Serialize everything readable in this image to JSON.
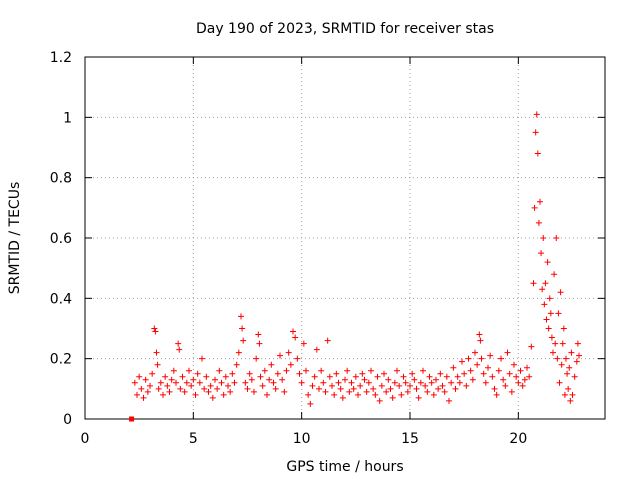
{
  "chart_data": {
    "type": "scatter",
    "title": "Day 190 of 2023, SRMTID for receiver stas",
    "xlabel": "GPS time / hours",
    "ylabel": "SRMTID / TECUs",
    "xlim": [
      0,
      24
    ],
    "ylim": [
      0,
      1.2
    ],
    "xticks": [
      0,
      5,
      10,
      15,
      20
    ],
    "yticks": [
      0,
      0.2,
      0.4,
      0.6,
      0.8,
      1,
      1.2
    ],
    "xtick_labels": [
      "0",
      "5",
      "10",
      "15",
      "20"
    ],
    "ytick_labels": [
      "0",
      "0.2",
      "0.4",
      "0.6",
      "0.8",
      "1",
      "1.2"
    ],
    "grid": true,
    "marker": "+",
    "color": "#ff0000",
    "outlier_points": [
      {
        "x": 2.15,
        "y": 0.0,
        "marker": "square"
      }
    ],
    "series": [
      {
        "name": "SRMTID",
        "points": [
          [
            2.3,
            0.12
          ],
          [
            2.4,
            0.08
          ],
          [
            2.5,
            0.14
          ],
          [
            2.6,
            0.1
          ],
          [
            2.7,
            0.07
          ],
          [
            2.8,
            0.13
          ],
          [
            2.9,
            0.09
          ],
          [
            3.0,
            0.11
          ],
          [
            3.1,
            0.15
          ],
          [
            3.2,
            0.3
          ],
          [
            3.25,
            0.29
          ],
          [
            3.3,
            0.22
          ],
          [
            3.35,
            0.18
          ],
          [
            3.4,
            0.1
          ],
          [
            3.5,
            0.12
          ],
          [
            3.6,
            0.08
          ],
          [
            3.7,
            0.14
          ],
          [
            3.8,
            0.11
          ],
          [
            3.9,
            0.09
          ],
          [
            4.0,
            0.13
          ],
          [
            4.1,
            0.16
          ],
          [
            4.2,
            0.12
          ],
          [
            4.3,
            0.25
          ],
          [
            4.35,
            0.23
          ],
          [
            4.4,
            0.1
          ],
          [
            4.5,
            0.14
          ],
          [
            4.6,
            0.09
          ],
          [
            4.7,
            0.12
          ],
          [
            4.8,
            0.16
          ],
          [
            4.9,
            0.11
          ],
          [
            5.0,
            0.13
          ],
          [
            5.1,
            0.08
          ],
          [
            5.2,
            0.15
          ],
          [
            5.3,
            0.12
          ],
          [
            5.4,
            0.2
          ],
          [
            5.5,
            0.1
          ],
          [
            5.6,
            0.14
          ],
          [
            5.7,
            0.09
          ],
          [
            5.8,
            0.11
          ],
          [
            5.9,
            0.07
          ],
          [
            6.0,
            0.13
          ],
          [
            6.1,
            0.1
          ],
          [
            6.2,
            0.16
          ],
          [
            6.3,
            0.12
          ],
          [
            6.4,
            0.08
          ],
          [
            6.5,
            0.14
          ],
          [
            6.6,
            0.11
          ],
          [
            6.7,
            0.09
          ],
          [
            6.8,
            0.15
          ],
          [
            6.9,
            0.12
          ],
          [
            7.0,
            0.18
          ],
          [
            7.1,
            0.22
          ],
          [
            7.2,
            0.34
          ],
          [
            7.25,
            0.3
          ],
          [
            7.3,
            0.26
          ],
          [
            7.4,
            0.12
          ],
          [
            7.5,
            0.1
          ],
          [
            7.6,
            0.15
          ],
          [
            7.7,
            0.13
          ],
          [
            7.8,
            0.09
          ],
          [
            7.9,
            0.2
          ],
          [
            8.0,
            0.28
          ],
          [
            8.05,
            0.25
          ],
          [
            8.1,
            0.14
          ],
          [
            8.2,
            0.11
          ],
          [
            8.3,
            0.16
          ],
          [
            8.4,
            0.08
          ],
          [
            8.5,
            0.13
          ],
          [
            8.6,
            0.18
          ],
          [
            8.7,
            0.12
          ],
          [
            8.8,
            0.1
          ],
          [
            8.9,
            0.15
          ],
          [
            9.0,
            0.21
          ],
          [
            9.1,
            0.13
          ],
          [
            9.2,
            0.09
          ],
          [
            9.3,
            0.16
          ],
          [
            9.4,
            0.22
          ],
          [
            9.5,
            0.18
          ],
          [
            9.6,
            0.29
          ],
          [
            9.7,
            0.27
          ],
          [
            9.8,
            0.2
          ],
          [
            9.9,
            0.15
          ],
          [
            10.0,
            0.12
          ],
          [
            10.1,
            0.25
          ],
          [
            10.2,
            0.16
          ],
          [
            10.3,
            0.08
          ],
          [
            10.4,
            0.05
          ],
          [
            10.5,
            0.11
          ],
          [
            10.6,
            0.14
          ],
          [
            10.7,
            0.23
          ],
          [
            10.8,
            0.1
          ],
          [
            10.9,
            0.16
          ],
          [
            11.0,
            0.12
          ],
          [
            11.1,
            0.09
          ],
          [
            11.2,
            0.26
          ],
          [
            11.3,
            0.14
          ],
          [
            11.4,
            0.11
          ],
          [
            11.5,
            0.08
          ],
          [
            11.6,
            0.15
          ],
          [
            11.7,
            0.12
          ],
          [
            11.8,
            0.1
          ],
          [
            11.9,
            0.07
          ],
          [
            12.0,
            0.13
          ],
          [
            12.1,
            0.16
          ],
          [
            12.2,
            0.09
          ],
          [
            12.3,
            0.12
          ],
          [
            12.4,
            0.1
          ],
          [
            12.5,
            0.14
          ],
          [
            12.6,
            0.08
          ],
          [
            12.7,
            0.11
          ],
          [
            12.8,
            0.15
          ],
          [
            12.9,
            0.13
          ],
          [
            13.0,
            0.09
          ],
          [
            13.1,
            0.12
          ],
          [
            13.2,
            0.16
          ],
          [
            13.3,
            0.1
          ],
          [
            13.4,
            0.08
          ],
          [
            13.5,
            0.14
          ],
          [
            13.6,
            0.06
          ],
          [
            13.7,
            0.11
          ],
          [
            13.8,
            0.15
          ],
          [
            13.9,
            0.09
          ],
          [
            14.0,
            0.13
          ],
          [
            14.1,
            0.1
          ],
          [
            14.2,
            0.07
          ],
          [
            14.3,
            0.12
          ],
          [
            14.4,
            0.16
          ],
          [
            14.5,
            0.11
          ],
          [
            14.6,
            0.08
          ],
          [
            14.7,
            0.14
          ],
          [
            14.8,
            0.12
          ],
          [
            14.9,
            0.09
          ],
          [
            15.0,
            0.11
          ],
          [
            15.1,
            0.15
          ],
          [
            15.2,
            0.13
          ],
          [
            15.3,
            0.1
          ],
          [
            15.4,
            0.07
          ],
          [
            15.5,
            0.12
          ],
          [
            15.6,
            0.16
          ],
          [
            15.7,
            0.11
          ],
          [
            15.8,
            0.09
          ],
          [
            15.9,
            0.14
          ],
          [
            16.0,
            0.12
          ],
          [
            16.1,
            0.08
          ],
          [
            16.2,
            0.13
          ],
          [
            16.3,
            0.1
          ],
          [
            16.4,
            0.15
          ],
          [
            16.5,
            0.11
          ],
          [
            16.6,
            0.09
          ],
          [
            16.7,
            0.14
          ],
          [
            16.8,
            0.06
          ],
          [
            16.9,
            0.12
          ],
          [
            17.0,
            0.17
          ],
          [
            17.1,
            0.1
          ],
          [
            17.2,
            0.14
          ],
          [
            17.3,
            0.12
          ],
          [
            17.4,
            0.19
          ],
          [
            17.5,
            0.15
          ],
          [
            17.6,
            0.11
          ],
          [
            17.7,
            0.2
          ],
          [
            17.8,
            0.16
          ],
          [
            17.9,
            0.13
          ],
          [
            18.0,
            0.22
          ],
          [
            18.1,
            0.18
          ],
          [
            18.2,
            0.28
          ],
          [
            18.25,
            0.26
          ],
          [
            18.3,
            0.2
          ],
          [
            18.4,
            0.15
          ],
          [
            18.5,
            0.12
          ],
          [
            18.6,
            0.17
          ],
          [
            18.7,
            0.21
          ],
          [
            18.8,
            0.14
          ],
          [
            18.9,
            0.1
          ],
          [
            19.0,
            0.08
          ],
          [
            19.1,
            0.16
          ],
          [
            19.2,
            0.2
          ],
          [
            19.3,
            0.13
          ],
          [
            19.4,
            0.11
          ],
          [
            19.5,
            0.22
          ],
          [
            19.6,
            0.15
          ],
          [
            19.7,
            0.09
          ],
          [
            19.8,
            0.18
          ],
          [
            19.9,
            0.14
          ],
          [
            20.0,
            0.12
          ],
          [
            20.1,
            0.16
          ],
          [
            20.2,
            0.11
          ],
          [
            20.3,
            0.13
          ],
          [
            20.4,
            0.17
          ],
          [
            20.5,
            0.14
          ],
          [
            20.6,
            0.24
          ],
          [
            20.7,
            0.45
          ],
          [
            20.75,
            0.7
          ],
          [
            20.8,
            0.95
          ],
          [
            20.85,
            1.01
          ],
          [
            20.9,
            0.88
          ],
          [
            20.95,
            0.65
          ],
          [
            21.0,
            0.72
          ],
          [
            21.05,
            0.55
          ],
          [
            21.1,
            0.43
          ],
          [
            21.15,
            0.6
          ],
          [
            21.2,
            0.38
          ],
          [
            21.25,
            0.45
          ],
          [
            21.3,
            0.33
          ],
          [
            21.35,
            0.52
          ],
          [
            21.4,
            0.3
          ],
          [
            21.45,
            0.4
          ],
          [
            21.5,
            0.35
          ],
          [
            21.55,
            0.27
          ],
          [
            21.6,
            0.22
          ],
          [
            21.65,
            0.48
          ],
          [
            21.7,
            0.25
          ],
          [
            21.75,
            0.6
          ],
          [
            21.8,
            0.2
          ],
          [
            21.85,
            0.35
          ],
          [
            21.9,
            0.12
          ],
          [
            21.95,
            0.42
          ],
          [
            22.0,
            0.18
          ],
          [
            22.05,
            0.25
          ],
          [
            22.1,
            0.3
          ],
          [
            22.15,
            0.08
          ],
          [
            22.2,
            0.2
          ],
          [
            22.25,
            0.15
          ],
          [
            22.3,
            0.1
          ],
          [
            22.35,
            0.17
          ],
          [
            22.4,
            0.06
          ],
          [
            22.45,
            0.22
          ],
          [
            22.5,
            0.08
          ],
          [
            22.6,
            0.14
          ],
          [
            22.7,
            0.19
          ],
          [
            22.75,
            0.25
          ],
          [
            22.8,
            0.21
          ]
        ]
      }
    ]
  }
}
